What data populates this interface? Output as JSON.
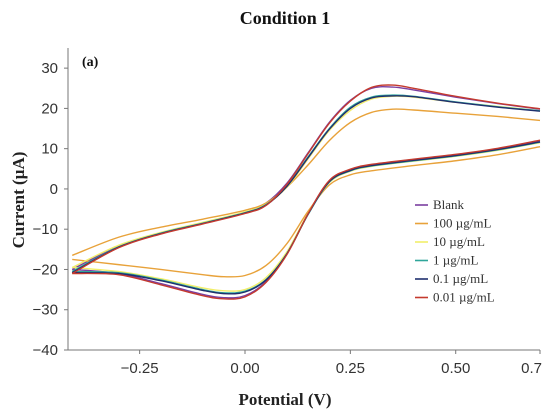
{
  "chart_data": {
    "type": "line",
    "title": "Condition 1",
    "panel_label": "(a)",
    "xlabel": "Potential (V)",
    "ylabel": "Current  (µA)",
    "xlim": [
      -0.42,
      0.7
    ],
    "ylim": [
      -40,
      35
    ],
    "x_ticks": [
      -0.25,
      0.0,
      0.25,
      0.5,
      0.7
    ],
    "x_tick_labels": [
      "−0.25",
      "0.00",
      "0.25",
      "0.50",
      "0.7"
    ],
    "y_ticks": [
      30,
      20,
      10,
      0,
      -10,
      -20,
      -30,
      -40
    ],
    "y_tick_labels": [
      "30",
      "20",
      "10",
      "0",
      "−10",
      "−20",
      "−30",
      "−40"
    ],
    "grid": false,
    "legend_position": "right",
    "series": [
      {
        "name": "Blank",
        "color": "#7b3fa0",
        "forward": {
          "x": [
            -0.41,
            -0.3,
            -0.2,
            -0.1,
            0.0,
            0.05,
            0.1,
            0.15,
            0.2,
            0.25,
            0.3,
            0.35,
            0.4,
            0.5,
            0.6,
            0.7
          ],
          "y": [
            -20.0,
            -14.2,
            -10.9,
            -8.4,
            -5.8,
            -3.5,
            1.5,
            9.0,
            16.5,
            22.0,
            25.0,
            25.3,
            24.6,
            22.8,
            21.2,
            19.8
          ]
        },
        "reverse": {
          "x": [
            0.7,
            0.6,
            0.5,
            0.4,
            0.3,
            0.25,
            0.2,
            0.15,
            0.1,
            0.05,
            0.0,
            -0.05,
            -0.1,
            -0.2,
            -0.3,
            -0.41
          ],
          "y": [
            12.0,
            10.0,
            8.5,
            7.3,
            6.0,
            4.8,
            2.0,
            -6.0,
            -16.0,
            -23.0,
            -26.5,
            -27.0,
            -26.2,
            -23.5,
            -21.0,
            -20.0
          ]
        }
      },
      {
        "name": "100  µg/mL",
        "color": "#e8a23a",
        "forward": {
          "x": [
            -0.41,
            -0.3,
            -0.2,
            -0.1,
            0.0,
            0.05,
            0.1,
            0.15,
            0.2,
            0.25,
            0.3,
            0.35,
            0.4,
            0.5,
            0.6,
            0.7
          ],
          "y": [
            -16.5,
            -12.0,
            -9.5,
            -7.5,
            -5.3,
            -3.5,
            0.5,
            6.0,
            12.0,
            16.5,
            19.0,
            19.8,
            19.6,
            18.8,
            18.0,
            17.0
          ]
        },
        "reverse": {
          "x": [
            0.7,
            0.6,
            0.5,
            0.4,
            0.3,
            0.25,
            0.2,
            0.15,
            0.1,
            0.05,
            0.0,
            -0.05,
            -0.1,
            -0.2,
            -0.3,
            -0.41
          ],
          "y": [
            10.5,
            8.5,
            7.0,
            5.8,
            4.5,
            3.5,
            1.0,
            -5.5,
            -13.5,
            -19.0,
            -21.5,
            -21.8,
            -21.3,
            -20.0,
            -18.8,
            -17.5
          ]
        }
      },
      {
        "name": "10    µg/mL",
        "color": "#f2ee6a",
        "forward": {
          "x": [
            -0.41,
            -0.3,
            -0.2,
            -0.1,
            0.0,
            0.05,
            0.1,
            0.15,
            0.2,
            0.25,
            0.3,
            0.35,
            0.4,
            0.5,
            0.6,
            0.7
          ],
          "y": [
            -19.5,
            -14.0,
            -10.8,
            -8.3,
            -5.7,
            -3.8,
            0.5,
            7.5,
            14.5,
            19.5,
            22.3,
            23.0,
            22.8,
            21.5,
            20.5,
            19.4
          ]
        },
        "reverse": {
          "x": [
            0.7,
            0.6,
            0.5,
            0.4,
            0.3,
            0.25,
            0.2,
            0.15,
            0.1,
            0.05,
            0.0,
            -0.05,
            -0.1,
            -0.2,
            -0.3,
            -0.41
          ],
          "y": [
            11.5,
            9.6,
            8.1,
            6.9,
            5.6,
            4.4,
            1.6,
            -6.0,
            -15.5,
            -22.0,
            -25.0,
            -25.3,
            -24.6,
            -22.3,
            -20.5,
            -19.5
          ]
        }
      },
      {
        "name": "1       µg/mL",
        "color": "#2fa69a",
        "forward": {
          "x": [
            -0.41,
            -0.3,
            -0.2,
            -0.1,
            0.0,
            0.05,
            0.1,
            0.15,
            0.2,
            0.25,
            0.3,
            0.35,
            0.4,
            0.5,
            0.6,
            0.7
          ],
          "y": [
            -20.5,
            -14.4,
            -11.0,
            -8.5,
            -5.9,
            -3.9,
            0.8,
            8.0,
            15.0,
            20.3,
            22.8,
            23.3,
            23.0,
            21.6,
            20.4,
            19.4
          ]
        },
        "reverse": {
          "x": [
            0.7,
            0.6,
            0.5,
            0.4,
            0.3,
            0.25,
            0.2,
            0.15,
            0.1,
            0.05,
            0.0,
            -0.05,
            -0.1,
            -0.2,
            -0.3,
            -0.41
          ],
          "y": [
            11.6,
            9.7,
            8.2,
            7.0,
            5.7,
            4.5,
            1.7,
            -6.3,
            -16.0,
            -22.5,
            -25.4,
            -25.8,
            -25.0,
            -22.6,
            -20.8,
            -20.5
          ]
        }
      },
      {
        "name": "0.1    µg/mL",
        "color": "#1f2f6e",
        "forward": {
          "x": [
            -0.41,
            -0.3,
            -0.2,
            -0.1,
            0.0,
            0.05,
            0.1,
            0.15,
            0.2,
            0.25,
            0.3,
            0.35,
            0.4,
            0.5,
            0.6,
            0.7
          ],
          "y": [
            -20.8,
            -14.5,
            -11.1,
            -8.6,
            -6.0,
            -4.0,
            0.7,
            7.8,
            14.8,
            20.0,
            22.6,
            23.1,
            22.9,
            21.5,
            20.3,
            19.3
          ]
        },
        "reverse": {
          "x": [
            0.7,
            0.6,
            0.5,
            0.4,
            0.3,
            0.25,
            0.2,
            0.15,
            0.1,
            0.05,
            0.0,
            -0.05,
            -0.1,
            -0.2,
            -0.3,
            -0.41
          ],
          "y": [
            11.7,
            9.8,
            8.3,
            7.1,
            5.8,
            4.6,
            1.8,
            -6.2,
            -16.0,
            -22.6,
            -25.6,
            -26.0,
            -25.2,
            -22.8,
            -21.0,
            -20.8
          ]
        }
      },
      {
        "name": "0.01 µg/mL",
        "color": "#c43a2e",
        "forward": {
          "x": [
            -0.41,
            -0.3,
            -0.2,
            -0.1,
            0.0,
            0.05,
            0.1,
            0.15,
            0.2,
            0.25,
            0.3,
            0.35,
            0.4,
            0.5,
            0.6,
            0.7
          ],
          "y": [
            -21.0,
            -14.6,
            -11.2,
            -8.7,
            -6.1,
            -4.1,
            1.2,
            8.8,
            16.3,
            21.8,
            25.2,
            25.8,
            25.0,
            23.0,
            21.3,
            19.9
          ]
        },
        "reverse": {
          "x": [
            0.7,
            0.6,
            0.5,
            0.4,
            0.3,
            0.25,
            0.2,
            0.15,
            0.1,
            0.05,
            0.0,
            -0.05,
            -0.1,
            -0.2,
            -0.3,
            -0.41
          ],
          "y": [
            12.1,
            10.1,
            8.6,
            7.4,
            6.1,
            4.9,
            2.1,
            -6.1,
            -16.2,
            -23.2,
            -26.8,
            -27.3,
            -26.5,
            -23.8,
            -21.3,
            -21.0
          ]
        }
      }
    ]
  }
}
